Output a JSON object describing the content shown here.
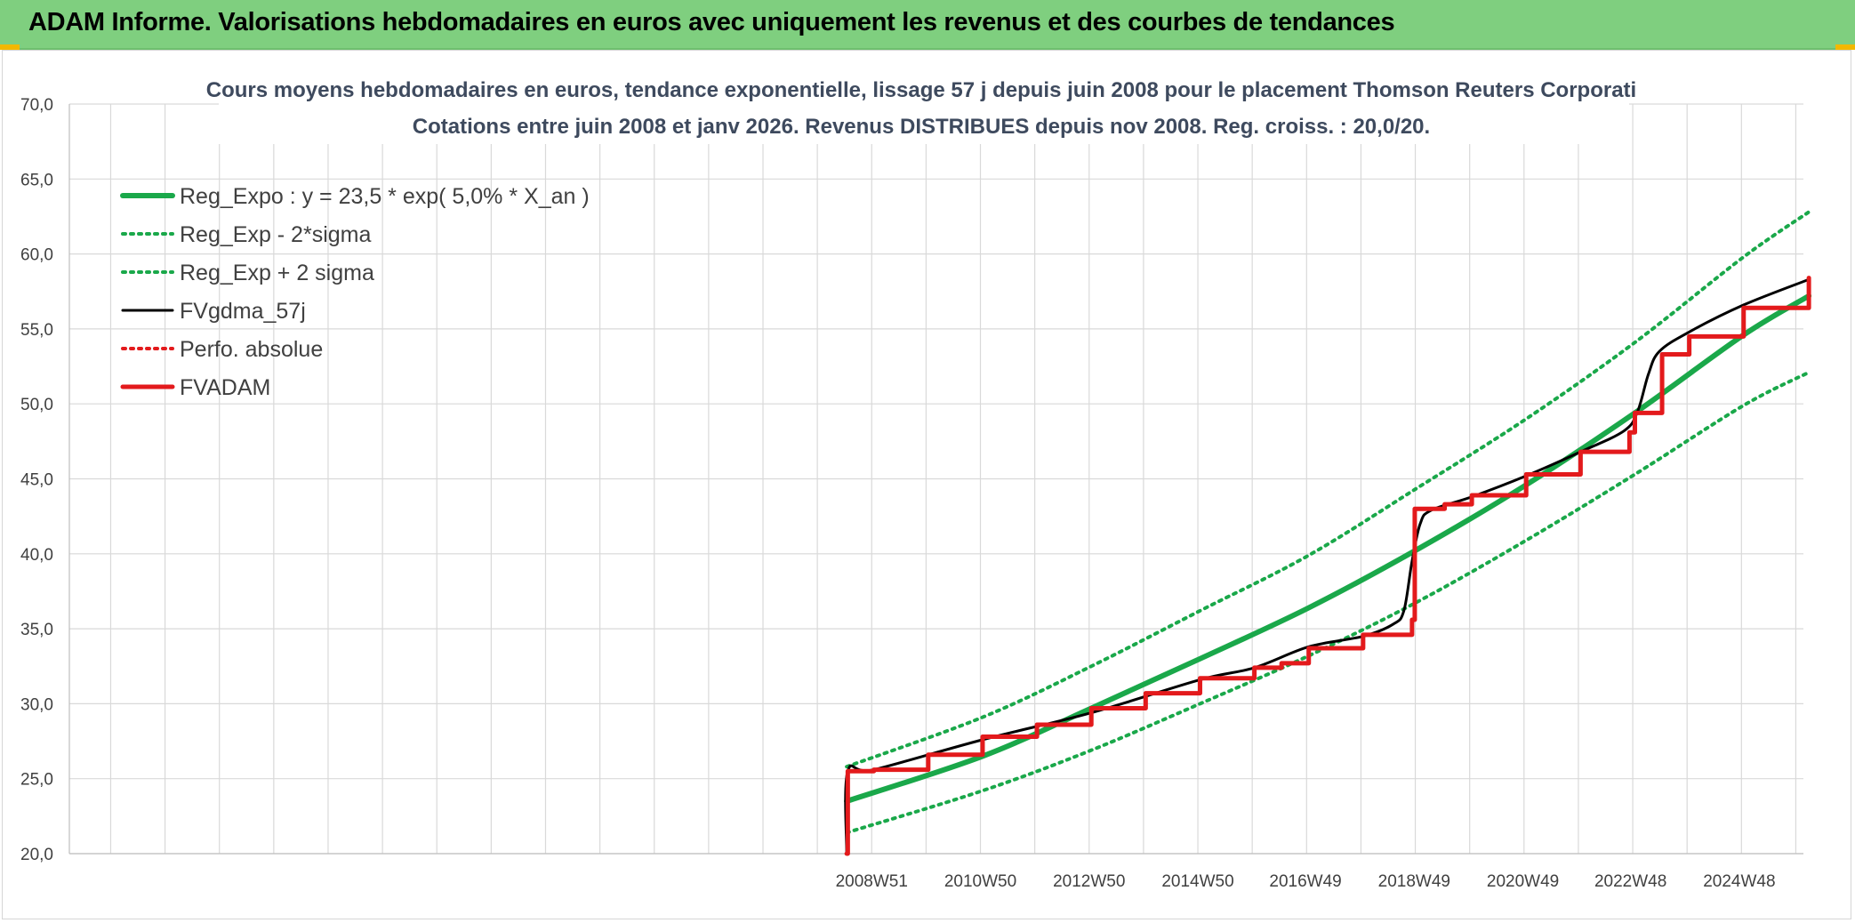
{
  "header": {
    "title": "ADAM Informe. Valorisations hebdomadaires en euros avec uniquement les revenus et des courbes de tendances",
    "background": "#7fcf7f"
  },
  "chart_data": {
    "type": "line",
    "title_line1": "Cours moyens hebdomadaires en euros, tendance exponentielle, lissage 57 j depuis juin 2008 pour le placement Thomson Reuters Corporati",
    "title_line2": "Cotations entre juin 2008 et janv 2026. Revenus DISTRIBUES depuis nov 2008. Reg. croiss. : 20,0/20.",
    "ylim": [
      20,
      70
    ],
    "yticks": [
      "70,0",
      "65,0",
      "60,0",
      "55,0",
      "50,0",
      "45,0",
      "40,0",
      "35,0",
      "30,0",
      "25,0",
      "20,0"
    ],
    "xlim": [
      1994.2,
      2026.1
    ],
    "x_tick_labels": [
      {
        "x": 2008.96,
        "label": "2008W51"
      },
      {
        "x": 2010.96,
        "label": "2010W50"
      },
      {
        "x": 2012.96,
        "label": "2012W50"
      },
      {
        "x": 2014.96,
        "label": "2014W50"
      },
      {
        "x": 2016.94,
        "label": "2016W49"
      },
      {
        "x": 2018.94,
        "label": "2018W49"
      },
      {
        "x": 2020.94,
        "label": "2020W49"
      },
      {
        "x": 2022.92,
        "label": "2022W48"
      },
      {
        "x": 2024.92,
        "label": "2024W48"
      }
    ],
    "grid": true,
    "legend_position": "top-left",
    "series": [
      {
        "name": "Reg_Expo : y = 23,5 * exp( 5,0% *  X_an )",
        "color": "#1aa84a",
        "style": "solid-thick",
        "x": [
          2008.5,
          2011.0,
          2013.0,
          2015.0,
          2017.0,
          2019.0,
          2021.0,
          2023.0,
          2025.0,
          2026.2
        ],
        "y": [
          23.5,
          26.5,
          29.7,
          33.0,
          36.4,
          40.3,
          44.6,
          49.4,
          54.6,
          57.2
        ]
      },
      {
        "name": "Reg_Exp - 2*sigma",
        "color": "#1aa84a",
        "style": "dotted",
        "x": [
          2008.5,
          2011.0,
          2013.0,
          2015.0,
          2017.0,
          2019.0,
          2021.0,
          2023.0,
          2025.0,
          2026.2
        ],
        "y": [
          21.4,
          24.2,
          26.9,
          30.0,
          33.2,
          36.8,
          40.9,
          45.3,
          49.9,
          52.1
        ]
      },
      {
        "name": "Reg_Exp + 2 sigma",
        "color": "#1aa84a",
        "style": "dotted",
        "x": [
          2008.5,
          2011.0,
          2013.0,
          2015.0,
          2017.0,
          2019.0,
          2021.0,
          2023.0,
          2025.0,
          2026.2
        ],
        "y": [
          25.8,
          29.1,
          32.5,
          36.2,
          39.9,
          44.4,
          49.0,
          54.1,
          59.8,
          62.8
        ]
      },
      {
        "name": "FVgdma_57j",
        "color": "#000000",
        "style": "solid-thin",
        "x": [
          2008.5,
          2008.52,
          2009.0,
          2011.0,
          2013.0,
          2015.0,
          2016.0,
          2017.0,
          2018.0,
          2018.55,
          2018.75,
          2018.9,
          2019.05,
          2019.25,
          2020.0,
          2021.0,
          2022.0,
          2022.8,
          2023.05,
          2023.25,
          2023.45,
          2024.0,
          2025.0,
          2026.2
        ],
        "y": [
          20.0,
          25.5,
          25.6,
          27.6,
          29.4,
          31.6,
          32.4,
          33.8,
          34.5,
          35.3,
          36.2,
          39.5,
          42.0,
          42.9,
          43.8,
          45.2,
          46.8,
          48.2,
          49.5,
          52.0,
          53.5,
          54.8,
          56.6,
          58.3
        ]
      },
      {
        "name": "Perfo. absolue",
        "color": "#e31a1c",
        "style": "dotted",
        "x": [],
        "y": []
      },
      {
        "name": "FVADAM",
        "color": "#e31a1c",
        "style": "step-thick",
        "x": [
          2008.5,
          2008.52,
          2009.0,
          2010.0,
          2011.0,
          2012.0,
          2013.0,
          2014.0,
          2015.0,
          2016.0,
          2016.5,
          2017.0,
          2018.0,
          2018.9,
          2018.95,
          2019.5,
          2020.0,
          2021.0,
          2022.0,
          2022.9,
          2023.0,
          2023.5,
          2024.0,
          2025.0,
          2026.2
        ],
        "y": [
          20.0,
          25.5,
          25.6,
          26.6,
          27.8,
          28.6,
          29.7,
          30.7,
          31.7,
          32.4,
          32.7,
          33.7,
          34.6,
          35.6,
          43.0,
          43.3,
          43.9,
          45.3,
          46.8,
          48.1,
          49.4,
          53.3,
          54.5,
          56.4,
          58.4
        ]
      }
    ]
  }
}
